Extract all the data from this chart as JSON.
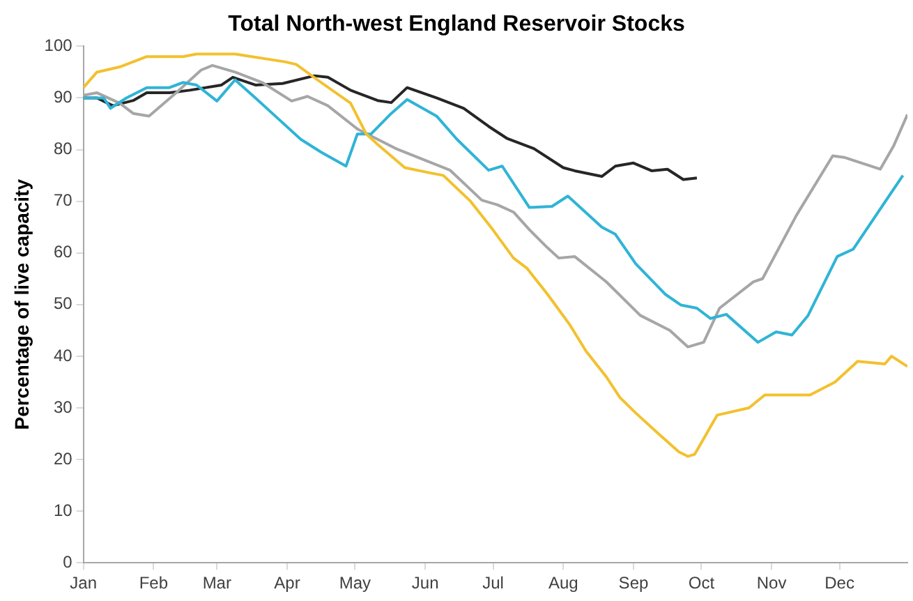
{
  "chart_data": {
    "type": "line",
    "title": "Total North-west England Reservoir Stocks",
    "ylabel": "Percentage of live capacity",
    "xlim": [
      "--01-01",
      "--12-31"
    ],
    "xticks": [
      {
        "value": "--01-01",
        "label": "Jan"
      },
      {
        "value": "--02-01",
        "label": "Feb"
      },
      {
        "value": "--03-01",
        "label": "Mar"
      },
      {
        "value": "--04-01",
        "label": "Apr"
      },
      {
        "value": "--05-01",
        "label": "May"
      },
      {
        "value": "--06-01",
        "label": "Jun"
      },
      {
        "value": "--07-01",
        "label": "Jul"
      },
      {
        "value": "--08-01",
        "label": "Aug"
      },
      {
        "value": "--09-01",
        "label": "Sep"
      },
      {
        "value": "--10-01",
        "label": "Oct"
      },
      {
        "value": "--11-01",
        "label": "Nov"
      },
      {
        "value": "--12-01",
        "label": "Dec"
      }
    ],
    "ylim": [
      0,
      100
    ],
    "yticks": [
      0,
      10,
      20,
      30,
      40,
      50,
      60,
      70,
      80,
      90,
      100
    ],
    "grid": false,
    "legend": false,
    "marker": "none",
    "line_style": "solid",
    "series": [
      {
        "color": "#f2c12e",
        "x": [
          "--01-01",
          "--01-07",
          "--01-17",
          "--01-29",
          "--02-14",
          "--02-20",
          "--03-09",
          "--03-31",
          "--04-05",
          "--04-16",
          "--04-29",
          "--05-06",
          "--05-11",
          "--05-23",
          "--06-03",
          "--06-09",
          "--06-21",
          "--06-30",
          "--07-10",
          "--07-16",
          "--07-25",
          "--08-04",
          "--08-11",
          "--08-20",
          "--08-26",
          "--09-02",
          "--09-12",
          "--09-21",
          "--09-25",
          "--09-28",
          "--10-08",
          "--10-22",
          "--10-29",
          "--11-13",
          "--11-18",
          "--11-29",
          "--12-09",
          "--12-21",
          "--12-24",
          "--12-31"
        ],
        "values": [
          92,
          95,
          96,
          98,
          98,
          98.5,
          98.5,
          97,
          96.5,
          93,
          89,
          83,
          81,
          76.5,
          75.5,
          75,
          70,
          65,
          59,
          57,
          52,
          46,
          41,
          36,
          32,
          29,
          25,
          21.5,
          20.6,
          21,
          28.6,
          30,
          32.5,
          32.5,
          32.5,
          35,
          39,
          38.5,
          40,
          38
        ]
      },
      {
        "color": "#2fb4d6",
        "x": [
          "--01-01",
          "--01-10",
          "--01-13",
          "--01-20",
          "--01-29",
          "--02-08",
          "--02-14",
          "--02-20",
          "--03-01",
          "--03-09",
          "--03-18",
          "--03-28",
          "--04-07",
          "--04-16",
          "--04-27",
          "--05-02",
          "--05-08",
          "--05-17",
          "--05-24",
          "--06-06",
          "--06-15",
          "--06-29",
          "--07-05",
          "--07-17",
          "--07-27",
          "--08-03",
          "--08-18",
          "--08-24",
          "--09-02",
          "--09-15",
          "--09-22",
          "--09-29",
          "--10-05",
          "--10-12",
          "--10-26",
          "--11-03",
          "--11-10",
          "--11-17",
          "--11-30",
          "--12-07",
          "--12-29"
        ],
        "values": [
          90,
          90,
          88,
          90,
          92,
          92,
          93,
          92.5,
          89.4,
          93.5,
          90,
          86,
          82,
          79.5,
          76.8,
          83,
          83,
          87,
          89.7,
          86.5,
          82,
          76,
          76.8,
          68.8,
          69,
          71,
          65,
          63.6,
          57.9,
          52,
          49.9,
          49.3,
          47.3,
          48.1,
          42.7,
          44.7,
          44.1,
          47.8,
          59.3,
          60.7,
          75
        ]
      },
      {
        "color": "#a6a6a6",
        "x": [
          "--01-01",
          "--01-07",
          "--01-17",
          "--01-23",
          "--01-30",
          "--02-11",
          "--02-22",
          "--02-27",
          "--03-09",
          "--03-21",
          "--04-03",
          "--04-10",
          "--04-19",
          "--05-02",
          "--05-19",
          "--06-12",
          "--06-26",
          "--07-03",
          "--07-10",
          "--07-17",
          "--07-25",
          "--07-30",
          "--08-06",
          "--08-20",
          "--09-04",
          "--09-17",
          "--09-25",
          "--10-02",
          "--10-09",
          "--10-24",
          "--10-28",
          "--11-12",
          "--11-28",
          "--12-03",
          "--12-19",
          "--12-25",
          "--12-31"
        ],
        "values": [
          90.5,
          91,
          89,
          87,
          86.5,
          91,
          95.4,
          96.3,
          95,
          93,
          89.4,
          90.3,
          88.5,
          84,
          80.2,
          76,
          70.2,
          69.3,
          67.9,
          64.5,
          61,
          59,
          59.3,
          54.4,
          47.9,
          45,
          41.8,
          42.7,
          49.3,
          54.4,
          55,
          67.3,
          78.8,
          78.5,
          76.2,
          80.8,
          86.8
        ]
      },
      {
        "color": "#262626",
        "x": [
          "--01-01",
          "--01-07",
          "--01-14",
          "--01-23",
          "--01-29",
          "--02-08",
          "--02-17",
          "--03-03",
          "--03-08",
          "--03-18",
          "--03-30",
          "--04-13",
          "--04-19",
          "--04-29",
          "--05-11",
          "--05-17",
          "--05-24",
          "--06-06",
          "--06-18",
          "--06-29",
          "--07-07",
          "--07-19",
          "--08-01",
          "--08-06",
          "--08-18",
          "--08-24",
          "--09-01",
          "--09-09",
          "--09-16",
          "--09-23",
          "--09-29"
        ],
        "values": [
          90,
          90,
          88.5,
          89.5,
          91,
          91,
          91.5,
          92.5,
          94,
          92.5,
          92.8,
          94.3,
          94,
          91.5,
          89.5,
          89.1,
          92,
          90,
          88,
          84.5,
          82.2,
          80.2,
          76.5,
          75.9,
          74.8,
          76.8,
          77.4,
          75.9,
          76.2,
          74.2,
          74.5
        ]
      }
    ]
  }
}
